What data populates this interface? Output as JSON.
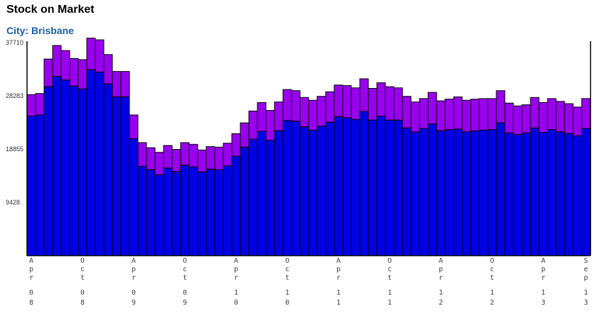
{
  "header": {
    "title": "Stock on Market",
    "subtitle": "City: Brisbane"
  },
  "colors": {
    "lower": "#0000e6",
    "upper": "#9900ee",
    "subtitle": "#1a5fa8",
    "stroke": "#000000"
  },
  "chart_data": {
    "type": "bar",
    "stacked": true,
    "title": "Stock on Market",
    "subtitle": "City: Brisbane",
    "ylim": [
      0,
      37710
    ],
    "yticks": [
      9428,
      18855,
      28283,
      37710
    ],
    "grid": false,
    "x_start": "Apr 08",
    "x_end": "Sep 13",
    "xticks": [
      {
        "label": "Apr 08",
        "index": 0
      },
      {
        "label": "Oct 08",
        "index": 6
      },
      {
        "label": "Apr 09",
        "index": 12
      },
      {
        "label": "Oct 09",
        "index": 18
      },
      {
        "label": "Apr 10",
        "index": 24
      },
      {
        "label": "Oct 10",
        "index": 30
      },
      {
        "label": "Apr 11",
        "index": 36
      },
      {
        "label": "Oct 11",
        "index": 42
      },
      {
        "label": "Apr 12",
        "index": 48
      },
      {
        "label": "Oct 12",
        "index": 54
      },
      {
        "label": "Apr 13",
        "index": 60
      },
      {
        "label": "Sep 13",
        "index": 65
      }
    ],
    "series": [
      {
        "values": [
          24700,
          24900,
          29900,
          31700,
          31100,
          30000,
          29500,
          32900,
          32500,
          30400,
          28100,
          28100,
          20700,
          15800,
          15200,
          14300,
          15500,
          14900,
          16000,
          15700,
          14800,
          15300,
          15200,
          15900,
          17600,
          19200,
          20600,
          22000,
          20400,
          22100,
          23900,
          23800,
          22800,
          22200,
          22900,
          23600,
          24600,
          24400,
          24100,
          25500,
          24000,
          24700,
          24000,
          24000,
          22600,
          21900,
          22500,
          23300,
          22100,
          22300,
          22400,
          21900,
          22100,
          22200,
          22300,
          23500,
          21700,
          21400,
          21700,
          22600,
          21800,
          22300,
          21900,
          21600,
          21200,
          22500
        ]
      },
      {
        "values": [
          3800,
          3800,
          4900,
          5500,
          5200,
          4900,
          5200,
          5600,
          5700,
          5200,
          4500,
          4500,
          4200,
          4200,
          3900,
          4000,
          4000,
          3900,
          4000,
          4000,
          3900,
          4000,
          4000,
          4000,
          4000,
          4300,
          5000,
          5100,
          5300,
          5100,
          5500,
          5400,
          5200,
          5300,
          5300,
          5400,
          5600,
          5700,
          5600,
          5800,
          5600,
          5900,
          5900,
          5700,
          5600,
          5300,
          5300,
          5600,
          5300,
          5400,
          5700,
          5600,
          5600,
          5600,
          5500,
          5700,
          5300,
          5100,
          5000,
          5400,
          5300,
          5500,
          5400,
          5300,
          5100,
          5300
        ]
      }
    ]
  }
}
